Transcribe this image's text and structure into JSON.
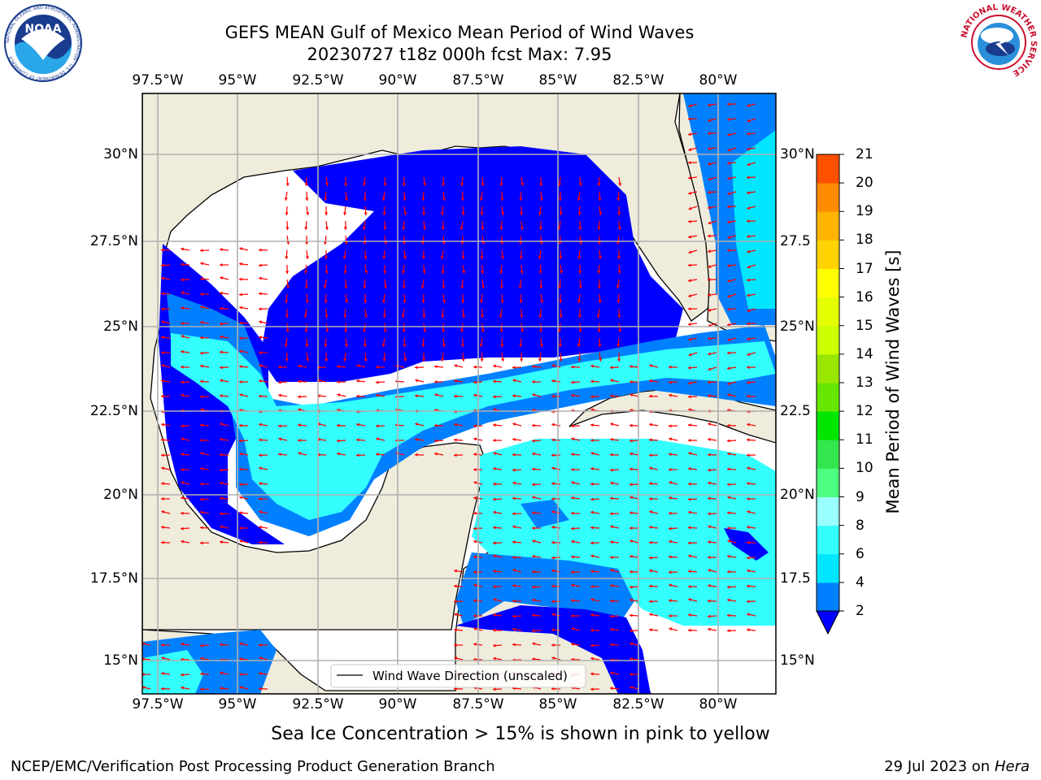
{
  "title": {
    "line1": "GEFS MEAN Gulf of Mexico Mean Period of Wind Waves",
    "line2": "20230727 t18z 000h fcst   Max: 7.95"
  },
  "map": {
    "lon_ticks": [
      "97.5°W",
      "95°W",
      "92.5°W",
      "90°W",
      "87.5°W",
      "85°W",
      "82.5°W",
      "80°W"
    ],
    "lat_ticks_left": [
      "30°N",
      "27.5°N",
      "25°N",
      "22.5°N",
      "20°N",
      "17.5°N",
      "15°N"
    ],
    "lat_ticks_right": [
      "30°N",
      "27.5",
      "25°N",
      "22.5",
      "20°N",
      "17.5",
      "15°N"
    ],
    "legend_label": "Wind Wave Direction (unscaled)",
    "land_color": "#efecdc",
    "arrow_color": "#ff0000"
  },
  "colorbar": {
    "label": "Mean Period of Wind Waves [s]",
    "ticks": [
      "2",
      "4",
      "6",
      "8",
      "9",
      "10",
      "11",
      "12",
      "13",
      "14",
      "15",
      "16",
      "17",
      "18",
      "19",
      "20",
      "21"
    ],
    "colors": [
      "#0000ff",
      "#0080ff",
      "#00e6ff",
      "#33ffff",
      "#99ffff",
      "#4dff80",
      "#33e64d",
      "#00e600",
      "#66e600",
      "#99e600",
      "#ccff00",
      "#e6ff00",
      "#ffff00",
      "#ffd200",
      "#ffb400",
      "#ff8c00",
      "#ff5000",
      "#ff2800",
      "#ff0000"
    ],
    "under_color": "#0000ff"
  },
  "note": "Sea Ice Concentration > 15% is shown in pink to yellow",
  "footer": {
    "left": "NCEP/EMC/Verification Post Processing Product Generation Branch",
    "date": "29 Jul 2023 on ",
    "machine": "Hera"
  },
  "logos": {
    "noaa": "NOAA",
    "noaa_ring": "NATIONAL OCEANIC AND ATMOSPHERIC ADMINISTRATION · U.S. DEPARTMENT OF COMMERCE",
    "nws_ring": "NATIONAL WEATHER SERVICE"
  }
}
